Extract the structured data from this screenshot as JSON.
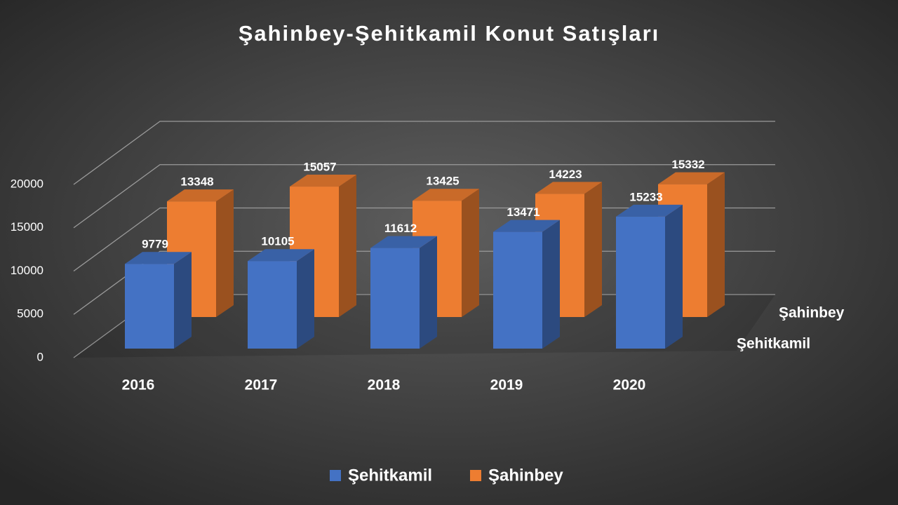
{
  "chart_data": {
    "type": "bar3d",
    "title": "Şahinbey-Şehitkamil Konut Satışları",
    "categories": [
      "2016",
      "2017",
      "2018",
      "2019",
      "2020"
    ],
    "series": [
      {
        "name": "Şehitkamil",
        "color": "#4472c4",
        "values": [
          9779,
          10105,
          11612,
          13471,
          15233
        ]
      },
      {
        "name": "Şahinbey",
        "color": "#ed7d31",
        "values": [
          13348,
          15057,
          13425,
          14223,
          15332
        ]
      }
    ],
    "ylim": [
      0,
      20000
    ],
    "yticks": [
      0,
      5000,
      10000,
      15000,
      20000
    ],
    "grid": true,
    "legend": "bottom"
  }
}
